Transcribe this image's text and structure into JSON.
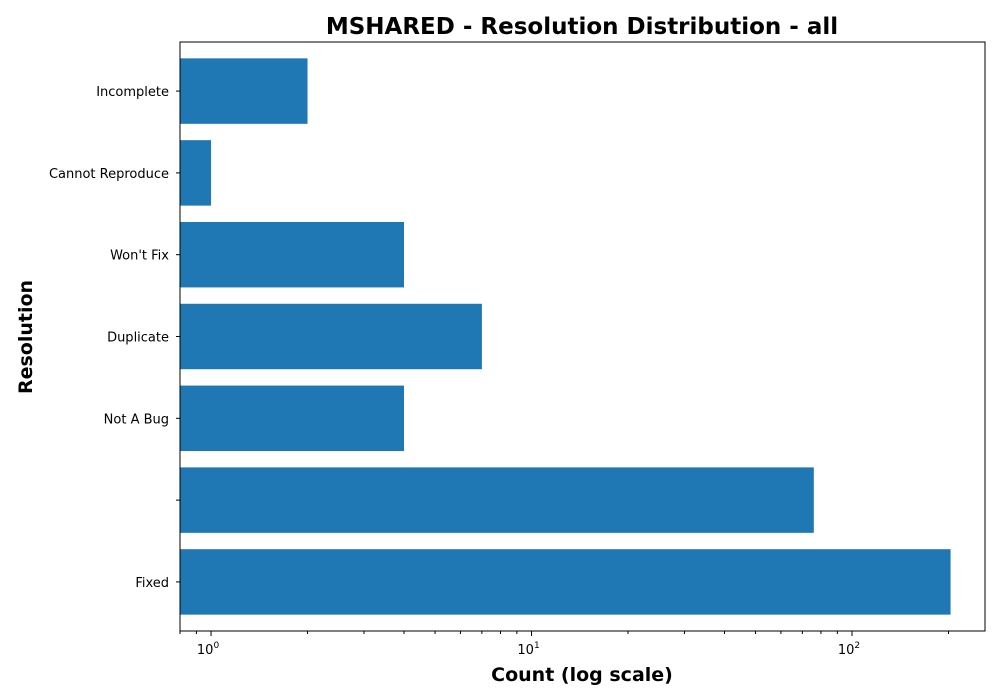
{
  "chart_data": {
    "type": "bar",
    "orientation": "horizontal",
    "title": "MSHARED - Resolution Distribution - all",
    "xlabel": "Count (log scale)",
    "ylabel": "Resolution",
    "x_scale": "log",
    "xlim": [
      0.8,
      260
    ],
    "x_ticks": [
      {
        "value": 1,
        "base": "10",
        "exp": "0"
      },
      {
        "value": 10,
        "base": "10",
        "exp": "1"
      },
      {
        "value": 100,
        "base": "10",
        "exp": "2"
      }
    ],
    "categories": [
      "Fixed",
      "",
      "Not A Bug",
      "Duplicate",
      "Won't Fix",
      "Cannot Reproduce",
      "Incomplete"
    ],
    "values": [
      203,
      76,
      4,
      7,
      4,
      1,
      2
    ],
    "color": "#1f77b4",
    "grid": false,
    "legend": "none"
  }
}
